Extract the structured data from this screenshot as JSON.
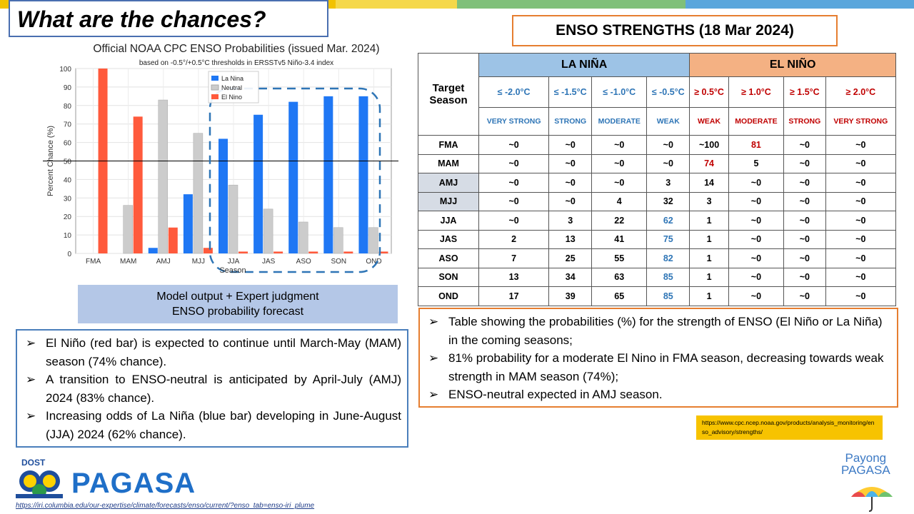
{
  "slide_title": "What are the chances?",
  "chart_data": {
    "type": "bar",
    "title": "Official NOAA CPC ENSO Probabilities (issued Mar. 2024)",
    "subtitle": "based on -0.5°/+0.5°C thresholds in ERSSTv5 Niño-3.4 index",
    "xlabel": "Season",
    "ylabel": "Percent Chance (%)",
    "ylim": [
      0,
      100
    ],
    "yticks": [
      0,
      10,
      20,
      30,
      40,
      50,
      60,
      70,
      80,
      90,
      100
    ],
    "categories": [
      "FMA",
      "MAM",
      "AMJ",
      "MJJ",
      "JJA",
      "JAS",
      "ASO",
      "SON",
      "OND"
    ],
    "series": [
      {
        "name": "La Nina",
        "color": "#1f77f4",
        "values": [
          0,
          0,
          3,
          32,
          62,
          75,
          82,
          85,
          85
        ]
      },
      {
        "name": "Neutral",
        "color": "#cccccc",
        "values": [
          0,
          26,
          83,
          65,
          37,
          24,
          17,
          14,
          14
        ]
      },
      {
        "name": "El Nino",
        "color": "#ff5a3c",
        "values": [
          100,
          74,
          14,
          3,
          1,
          1,
          1,
          1,
          1
        ]
      }
    ],
    "legend": "top-right",
    "reference_line": 50
  },
  "model_box": {
    "line1": "Model output + Expert judgment",
    "line2": "ENSO probability forecast"
  },
  "left_bullets": [
    "El Niño (red bar) is expected to continue until March-May (MAM) season (74% chance).",
    "A transition to ENSO-neutral is anticipated by April-July (AMJ) 2024 (83% chance).",
    "Increasing odds of La Niña (blue bar) developing in June-August (JJA) 2024 (62% chance)."
  ],
  "enso_title": "ENSO STRENGTHS (18 Mar 2024)",
  "table": {
    "target_season": "Target Season",
    "lanina": "LA NIÑA",
    "elnino": "EL NIÑO",
    "thresholds": [
      "≤ -2.0°C",
      "≤ -1.5°C",
      "≤ -1.0°C",
      "≤ -0.5°C",
      "≥ 0.5°C",
      "≥ 1.0°C",
      "≥ 1.5°C",
      "≥ 2.0°C"
    ],
    "strengths": [
      "VERY STRONG",
      "STRONG",
      "MODERATE",
      "WEAK",
      "WEAK",
      "MODERATE",
      "STRONG",
      "VERY STRONG"
    ],
    "rows": [
      {
        "season": "FMA",
        "cells": [
          "~0",
          "~0",
          "~0",
          "~0",
          "~100",
          "81",
          "~0",
          "~0"
        ]
      },
      {
        "season": "MAM",
        "cells": [
          "~0",
          "~0",
          "~0",
          "~0",
          "74",
          "5",
          "~0",
          "~0"
        ]
      },
      {
        "season": "AMJ",
        "cells": [
          "~0",
          "~0",
          "~0",
          "3",
          "14",
          "~0",
          "~0",
          "~0"
        ]
      },
      {
        "season": "MJJ",
        "cells": [
          "~0",
          "~0",
          "4",
          "32",
          "3",
          "~0",
          "~0",
          "~0"
        ]
      },
      {
        "season": "JJA",
        "cells": [
          "~0",
          "3",
          "22",
          "62",
          "1",
          "~0",
          "~0",
          "~0"
        ]
      },
      {
        "season": "JAS",
        "cells": [
          "2",
          "13",
          "41",
          "75",
          "1",
          "~0",
          "~0",
          "~0"
        ]
      },
      {
        "season": "ASO",
        "cells": [
          "7",
          "25",
          "55",
          "82",
          "1",
          "~0",
          "~0",
          "~0"
        ]
      },
      {
        "season": "SON",
        "cells": [
          "13",
          "34",
          "63",
          "85",
          "1",
          "~0",
          "~0",
          "~0"
        ]
      },
      {
        "season": "OND",
        "cells": [
          "17",
          "39",
          "65",
          "85",
          "1",
          "~0",
          "~0",
          "~0"
        ]
      }
    ]
  },
  "right_bullets": [
    "Table showing the probabilities (%) for the strength of ENSO (El Niño or La Niña) in the coming seasons;",
    "81% probability for a moderate El Nino in FMA season, decreasing towards weak strength in MAM season (74%);",
    "ENSO-neutral expected in AMJ season."
  ],
  "cpc_url": "https://www.cpc.ncep.noaa.gov/products/analysis_monitoring/enso_advisory/strengths/",
  "iri_url": "https://iri.columbia.edu/our-expertise/climate/forecasts/enso/current/?enso_tab=enso-iri_plume",
  "logo_dost": "DOST",
  "logo_pagasa": "PAGASA",
  "logo_payong": "Payong PAGASA"
}
